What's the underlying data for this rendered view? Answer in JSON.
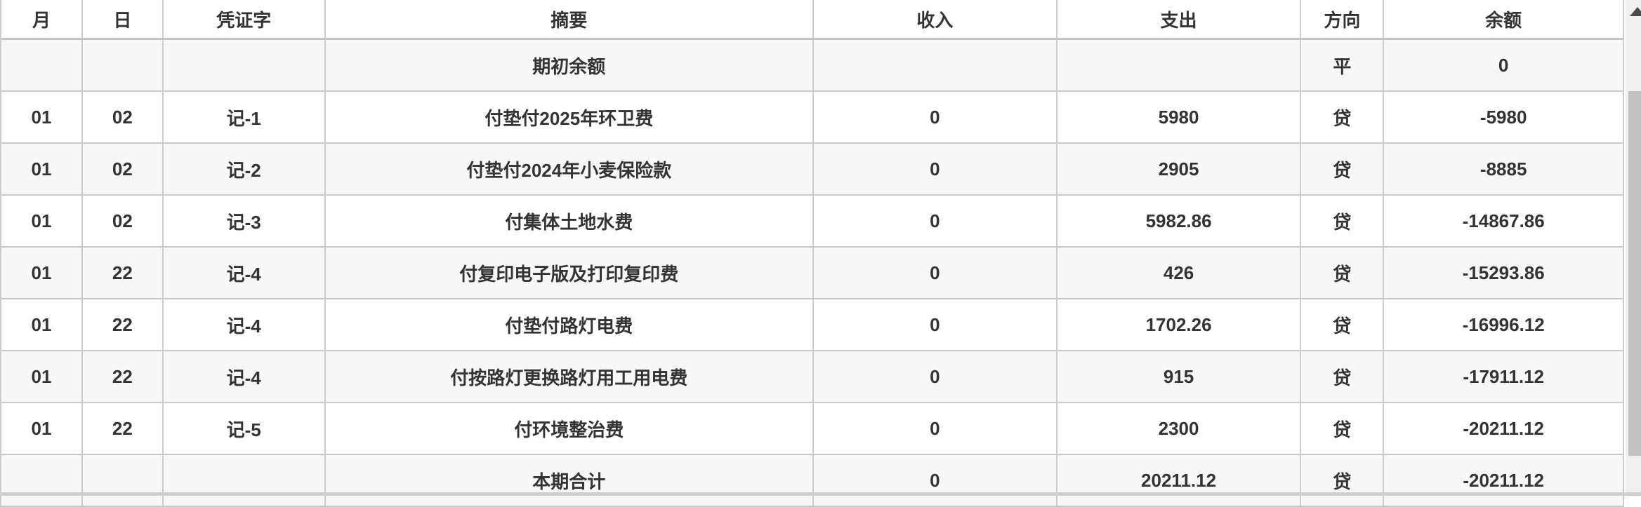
{
  "table": {
    "columns": [
      {
        "key": "month",
        "label": "月"
      },
      {
        "key": "day",
        "label": "日"
      },
      {
        "key": "voucher",
        "label": "凭证字"
      },
      {
        "key": "summary",
        "label": "摘要"
      },
      {
        "key": "income",
        "label": "收入"
      },
      {
        "key": "expense",
        "label": "支出"
      },
      {
        "key": "direction",
        "label": "方向"
      },
      {
        "key": "balance",
        "label": "余额"
      }
    ],
    "rows": [
      {
        "month": "",
        "day": "",
        "voucher": "",
        "summary": "期初余额",
        "income": "",
        "expense": "",
        "direction": "平",
        "balance": "0"
      },
      {
        "month": "01",
        "day": "02",
        "voucher": "记-1",
        "summary": "付垫付2025年环卫费",
        "income": "0",
        "expense": "5980",
        "direction": "贷",
        "balance": "-5980"
      },
      {
        "month": "01",
        "day": "02",
        "voucher": "记-2",
        "summary": "付垫付2024年小麦保险款",
        "income": "0",
        "expense": "2905",
        "direction": "贷",
        "balance": "-8885"
      },
      {
        "month": "01",
        "day": "02",
        "voucher": "记-3",
        "summary": "付集体土地水费",
        "income": "0",
        "expense": "5982.86",
        "direction": "贷",
        "balance": "-14867.86"
      },
      {
        "month": "01",
        "day": "22",
        "voucher": "记-4",
        "summary": "付复印电子版及打印复印费",
        "income": "0",
        "expense": "426",
        "direction": "贷",
        "balance": "-15293.86"
      },
      {
        "month": "01",
        "day": "22",
        "voucher": "记-4",
        "summary": "付垫付路灯电费",
        "income": "0",
        "expense": "1702.26",
        "direction": "贷",
        "balance": "-16996.12"
      },
      {
        "month": "01",
        "day": "22",
        "voucher": "记-4",
        "summary": "付按路灯更换路灯用工用电费",
        "income": "0",
        "expense": "915",
        "direction": "贷",
        "balance": "-17911.12"
      },
      {
        "month": "01",
        "day": "22",
        "voucher": "记-5",
        "summary": "付环境整治费",
        "income": "0",
        "expense": "2300",
        "direction": "贷",
        "balance": "-20211.12"
      },
      {
        "month": "",
        "day": "",
        "voucher": "",
        "summary": "本期合计",
        "income": "0",
        "expense": "20211.12",
        "direction": "贷",
        "balance": "-20211.12"
      }
    ]
  },
  "icons": {
    "scroll_up": "▲"
  },
  "colors": {
    "text": "#333333",
    "row_alt_bg": "#f7f7f7",
    "border": "#cccccc",
    "scrollbar_track": "#f0f0f0",
    "scrollbar_thumb": "#c1c1c1",
    "scroll_arrow": "#4d4d4d"
  }
}
